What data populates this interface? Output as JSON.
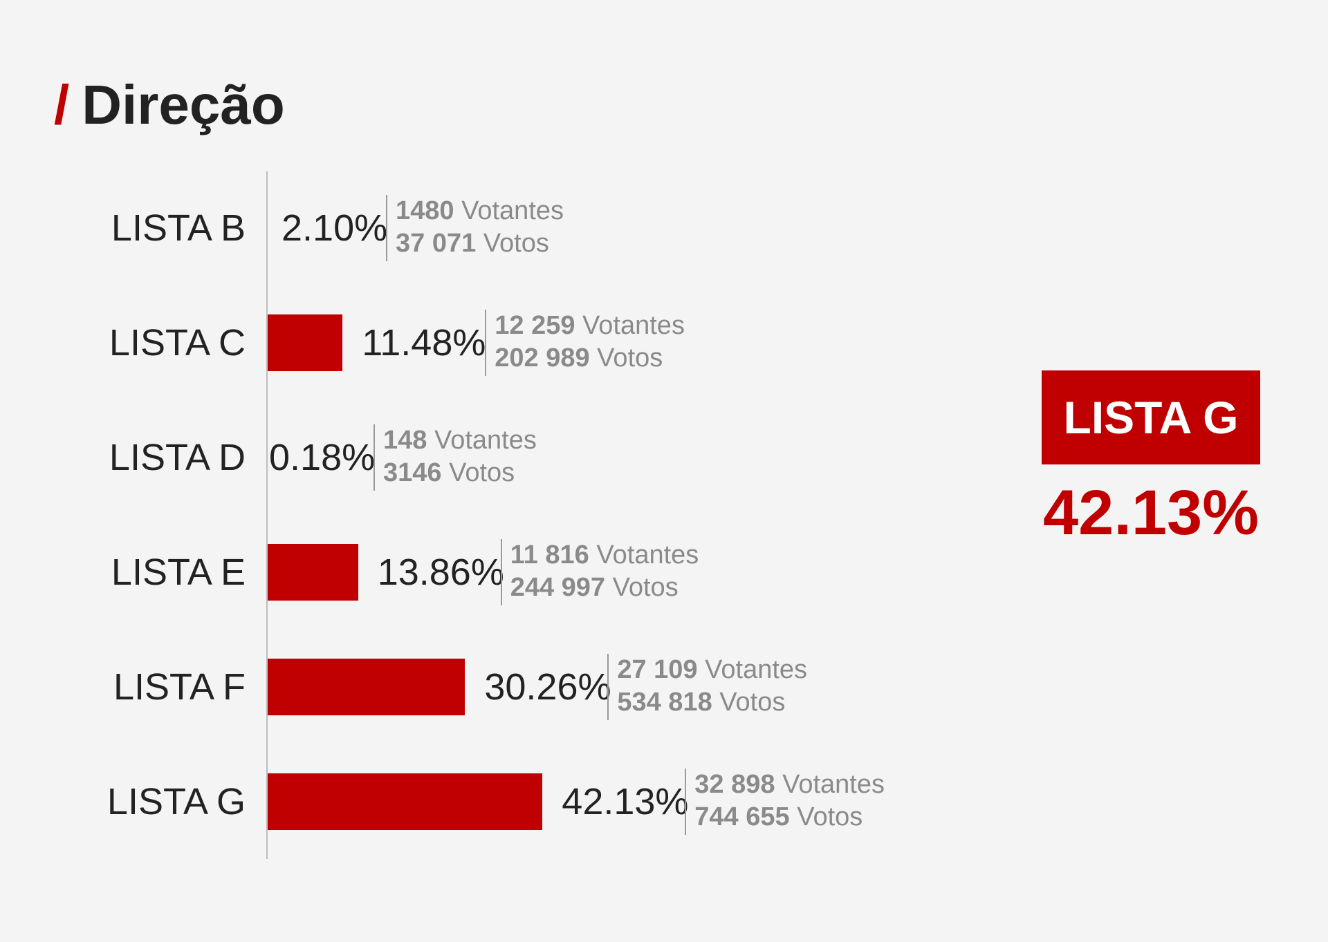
{
  "header": {
    "slash": "/",
    "title": "Direção"
  },
  "chart_data": {
    "type": "bar",
    "orientation": "horizontal",
    "categories": [
      "LISTA B",
      "LISTA C",
      "LISTA D",
      "LISTA E",
      "LISTA F",
      "LISTA G"
    ],
    "values": [
      2.1,
      11.48,
      0.18,
      13.86,
      30.26,
      42.13
    ],
    "value_labels": [
      "2.10%",
      "11.48%",
      "0.18%",
      "13.86%",
      "30.26%",
      "42.13%"
    ],
    "votantes": [
      "1480",
      "12 259",
      "148",
      "11 816",
      "27 109",
      "32 898"
    ],
    "votos": [
      "37 071",
      "202 989",
      "3146",
      "244 997",
      "534 818",
      "744 655"
    ],
    "votantes_label": "Votantes",
    "votos_label": "Votos",
    "bar_color": "#c00000",
    "grid": false,
    "legend": "none"
  },
  "winner": {
    "name": "LISTA G",
    "pct": "42.13%"
  }
}
